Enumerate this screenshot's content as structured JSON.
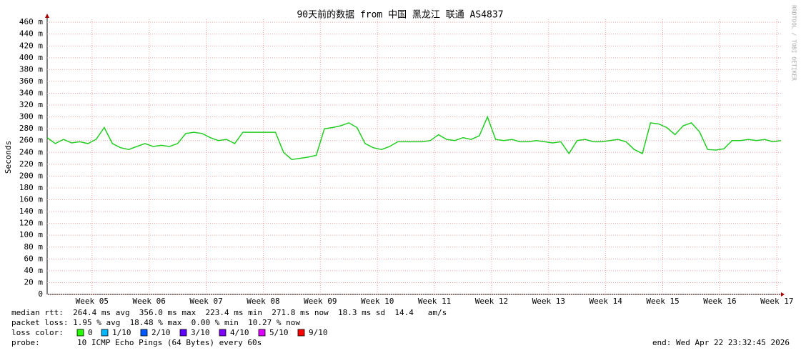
{
  "chart_data": {
    "type": "line",
    "title": "90天前的数据 from  中国 黑龙江 联通 AS4837",
    "y_label": "Seconds",
    "side_label": "RRDTOOL / TOBI OETIKER",
    "x": [
      0,
      1,
      2,
      3,
      4,
      5,
      6,
      7,
      8,
      9,
      10,
      11,
      12,
      13,
      14,
      15,
      16,
      17,
      18,
      19,
      20,
      21,
      22,
      23,
      24,
      25,
      26,
      27,
      28,
      29,
      30,
      31,
      32,
      33,
      34,
      35,
      36,
      37,
      38,
      39,
      40,
      41,
      42,
      43,
      44,
      45,
      46,
      47,
      48,
      49,
      50,
      51,
      52,
      53,
      54,
      55,
      56,
      57,
      58,
      59,
      60,
      61,
      62,
      63,
      64,
      65,
      66,
      67,
      68,
      69,
      70,
      71,
      72,
      73,
      74,
      75,
      76,
      77,
      78,
      79,
      80,
      81,
      82,
      83,
      84,
      85,
      86,
      87,
      88,
      89,
      90
    ],
    "series": [
      {
        "color": "#22cc22",
        "values": [
          0.265,
          0.255,
          0.262,
          0.256,
          0.258,
          0.255,
          0.262,
          0.282,
          0.255,
          0.248,
          0.245,
          0.25,
          0.255,
          0.25,
          0.252,
          0.25,
          0.255,
          0.272,
          0.274,
          0.272,
          0.265,
          0.26,
          0.262,
          0.255,
          0.274,
          0.274,
          0.274,
          0.274,
          0.274,
          0.24,
          0.228,
          0.23,
          0.232,
          0.235,
          0.28,
          0.282,
          0.285,
          0.29,
          0.282,
          0.255,
          0.248,
          0.245,
          0.25,
          0.258,
          0.258,
          0.258,
          0.258,
          0.26,
          0.27,
          0.262,
          0.26,
          0.265,
          0.262,
          0.268,
          0.3,
          0.262,
          0.26,
          0.262,
          0.258,
          0.258,
          0.26,
          0.258,
          0.256,
          0.258,
          0.238,
          0.26,
          0.262,
          0.258,
          0.258,
          0.26,
          0.262,
          0.258,
          0.245,
          0.238,
          0.29,
          0.288,
          0.282,
          0.27,
          0.285,
          0.29,
          0.275,
          0.245,
          0.244,
          0.246,
          0.26,
          0.26,
          0.262,
          0.26,
          0.262,
          0.258,
          0.26
        ]
      }
    ],
    "xlim": [
      0,
      90
    ],
    "xticks": [
      {
        "value": 5.5,
        "label": "Week 05"
      },
      {
        "value": 12.5,
        "label": "Week 06"
      },
      {
        "value": 19.5,
        "label": "Week 07"
      },
      {
        "value": 26.5,
        "label": "Week 08"
      },
      {
        "value": 33.5,
        "label": "Week 09"
      },
      {
        "value": 40.5,
        "label": "Week 10"
      },
      {
        "value": 47.5,
        "label": "Week 11"
      },
      {
        "value": 54.5,
        "label": "Week 12"
      },
      {
        "value": 61.5,
        "label": "Week 13"
      },
      {
        "value": 68.5,
        "label": "Week 14"
      },
      {
        "value": 75.5,
        "label": "Week 15"
      },
      {
        "value": 82.5,
        "label": "Week 16"
      },
      {
        "value": 89.5,
        "label": "Week 17"
      }
    ],
    "ylim": [
      0,
      0.465
    ],
    "yticks": [
      0,
      {
        "value": 0.02,
        "label": "20 m"
      },
      {
        "value": 0.04,
        "label": "40 m"
      },
      {
        "value": 0.06,
        "label": "60 m"
      },
      {
        "value": 0.08,
        "label": "80 m"
      },
      {
        "value": 0.1,
        "label": "100 m"
      },
      {
        "value": 0.12,
        "label": "120 m"
      },
      {
        "value": 0.14,
        "label": "140 m"
      },
      {
        "value": 0.16,
        "label": "160 m"
      },
      {
        "value": 0.18,
        "label": "180 m"
      },
      {
        "value": 0.2,
        "label": "200 m"
      },
      {
        "value": 0.22,
        "label": "220 m"
      },
      {
        "value": 0.24,
        "label": "240 m"
      },
      {
        "value": 0.26,
        "label": "260 m"
      },
      {
        "value": 0.28,
        "label": "280 m"
      },
      {
        "value": 0.3,
        "label": "300 m"
      },
      {
        "value": 0.32,
        "label": "320 m"
      },
      {
        "value": 0.34,
        "label": "340 m"
      },
      {
        "value": 0.36,
        "label": "360 m"
      },
      {
        "value": 0.38,
        "label": "380 m"
      },
      {
        "value": 0.4,
        "label": "400 m"
      },
      {
        "value": 0.42,
        "label": "420 m"
      },
      {
        "value": 0.44,
        "label": "440 m"
      },
      {
        "value": 0.46,
        "label": "460 m"
      }
    ],
    "grid": true,
    "footer": [
      "median rtt:  264.4 ms avg  356.0 ms max  223.4 ms min  271.8 ms now  18.3 ms sd  14.4   am/s",
      "packet loss: 1.95 % avg  18.48 % max  0.00 % min  10.27 % now"
    ],
    "loss_label": "loss color:",
    "loss_legend": [
      {
        "name": "0",
        "color": "#26ff00"
      },
      {
        "name": "1/10",
        "color": "#00b8ff"
      },
      {
        "name": "2/10",
        "color": "#0059ff"
      },
      {
        "name": "3/10",
        "color": "#5e00ff"
      },
      {
        "name": "4/10",
        "color": "#7e00ff"
      },
      {
        "name": "5/10",
        "color": "#dd00ff"
      },
      {
        "name": "9/10",
        "color": "#ff0000"
      }
    ],
    "probe_label": "probe:",
    "probe": "10 ICMP Echo Pings (64 Bytes) every 60s",
    "end": "end: Wed Apr 22 23:32:45 2026"
  }
}
